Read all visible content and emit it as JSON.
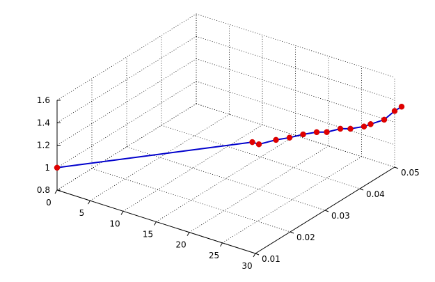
{
  "colors": {
    "background": "#ffffff",
    "line": "#0000cc",
    "marker": "#e00000",
    "axes": "#000000"
  },
  "chart_data": {
    "type": "line",
    "projection": "3d",
    "grid": true,
    "title": "",
    "xlabel": "",
    "ylabel": "",
    "zlabel": "",
    "xlim": [
      0,
      30
    ],
    "ylim": [
      0.01,
      0.05
    ],
    "zlim": [
      0.8,
      1.6
    ],
    "x_ticks": [
      "0",
      "5",
      "10",
      "15",
      "20",
      "25",
      "30"
    ],
    "y_ticks": [
      "0.01",
      "0.02",
      "0.03",
      "0.04",
      "0.05"
    ],
    "z_ticks": [
      "0.8",
      "1",
      "1.2",
      "1.4",
      "1.6"
    ],
    "series": [
      {
        "marker": "circle",
        "x": [
          0,
          19,
          20,
          21,
          22,
          23,
          24,
          25,
          26,
          27,
          28,
          29,
          30,
          30,
          30
        ],
        "y": [
          0.01,
          0.03,
          0.03,
          0.033,
          0.035,
          0.037,
          0.039,
          0.04,
          0.042,
          0.043,
          0.045,
          0.045,
          0.047,
          0.05,
          0.052
        ],
        "z": [
          1.0,
          1.2,
          1.2,
          1.2,
          1.2,
          1.21,
          1.21,
          1.21,
          1.22,
          1.22,
          1.22,
          1.26,
          1.28,
          1.3,
          1.3
        ]
      }
    ]
  }
}
